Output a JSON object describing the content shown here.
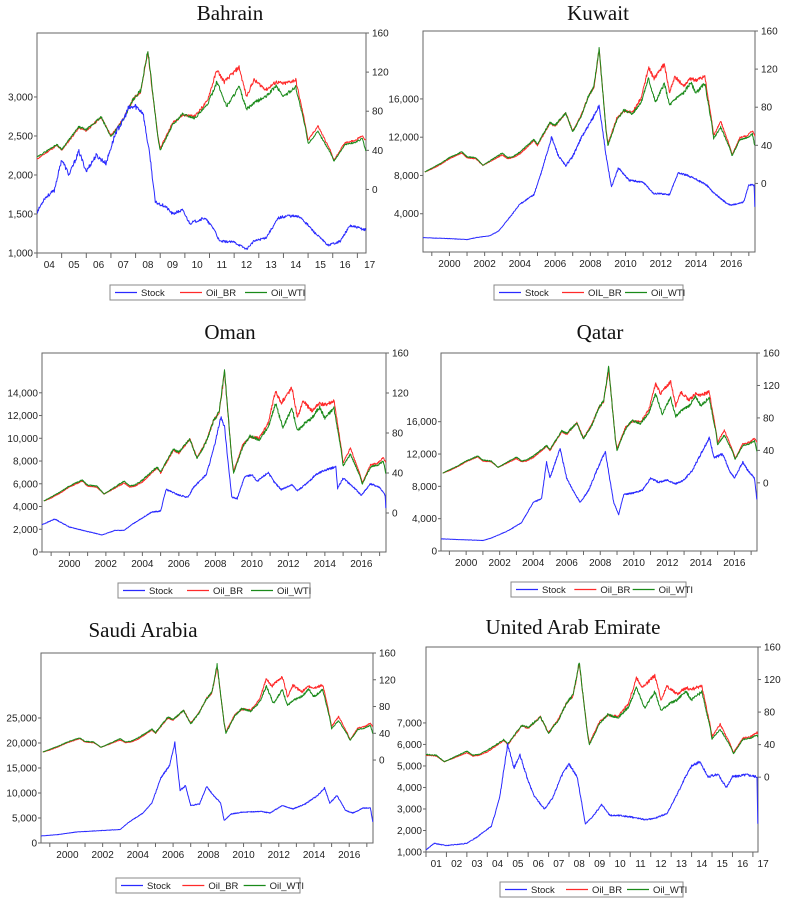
{
  "colors": {
    "Stock": "#2a2aff",
    "Oil_BR": "#ff2a2a",
    "Oil_WTI": "#1a8a1a",
    "frame": "#666666"
  },
  "oil_prices": {
    "Oil_BR": {
      "x": [
        1998.6,
        1999.0,
        1999.5,
        2000.0,
        2000.7,
        2001.0,
        2001.5,
        2001.9,
        2002.5,
        2003.0,
        2003.3,
        2003.6,
        2004.0,
        2004.8,
        2005.0,
        2005.7,
        2006.0,
        2006.6,
        2007.0,
        2007.5,
        2007.9,
        2008.2,
        2008.5,
        2008.9,
        2009.0,
        2009.5,
        2009.9,
        2010.4,
        2010.9,
        2011.3,
        2011.6,
        2012.2,
        2012.5,
        2012.8,
        2013.3,
        2013.7,
        2014.0,
        2014.5,
        2014.9,
        2015.0,
        2015.4,
        2015.9,
        2016.05,
        2016.5,
        2016.9,
        2017.2,
        2017.4
      ],
      "values": [
        12,
        15,
        20,
        26,
        32,
        27,
        26,
        19,
        25,
        30,
        26,
        27,
        31,
        45,
        40,
        63,
        60,
        74,
        55,
        72,
        92,
        100,
        140,
        55,
        42,
        68,
        76,
        75,
        90,
        122,
        110,
        125,
        95,
        112,
        102,
        110,
        108,
        112,
        65,
        50,
        65,
        40,
        30,
        48,
        50,
        55,
        48
      ]
    },
    "Oil_WTI": {
      "x": [
        1998.6,
        1999.0,
        1999.5,
        2000.0,
        2000.7,
        2001.0,
        2001.5,
        2001.9,
        2002.5,
        2003.0,
        2003.3,
        2003.6,
        2004.0,
        2004.8,
        2005.0,
        2005.7,
        2006.0,
        2006.6,
        2007.0,
        2007.5,
        2007.9,
        2008.2,
        2008.5,
        2008.9,
        2009.0,
        2009.5,
        2009.9,
        2010.4,
        2010.9,
        2011.3,
        2011.7,
        2012.2,
        2012.5,
        2012.9,
        2013.3,
        2013.7,
        2014.0,
        2014.5,
        2014.9,
        2015.0,
        2015.4,
        2015.9,
        2016.05,
        2016.5,
        2016.9,
        2017.2,
        2017.4
      ],
      "values": [
        12,
        16,
        21,
        27,
        33,
        28,
        27,
        19,
        26,
        32,
        27,
        28,
        33,
        46,
        41,
        64,
        61,
        74,
        54,
        71,
        92,
        101,
        142,
        54,
        40,
        66,
        77,
        73,
        86,
        110,
        85,
        105,
        82,
        90,
        95,
        106,
        95,
        105,
        62,
        47,
        59,
        38,
        29,
        46,
        48,
        52,
        34
      ]
    }
  },
  "chart_data": [
    {
      "type": "line",
      "title": "Bahrain",
      "xlim": [
        2004.0,
        2017.35
      ],
      "ylim": [
        1000,
        3820
      ],
      "y2lim": [
        -65,
        160
      ],
      "yticks": [
        1000,
        1500,
        2000,
        2500,
        3000
      ],
      "ytick_labels": [
        "1,000",
        "1,500",
        "2,000",
        "2,500",
        "3,000"
      ],
      "y2ticks": [
        0,
        40,
        80,
        120,
        160
      ],
      "y2tick_labels": [
        "0",
        "40",
        "80",
        "120",
        "160"
      ],
      "xticks": [
        2004,
        2005,
        2006,
        2007,
        2008,
        2009,
        2010,
        2011,
        2012,
        2013,
        2014,
        2015,
        2016,
        2017
      ],
      "xtick_labels": [
        "04",
        "05",
        "06",
        "07",
        "08",
        "09",
        "10",
        "11",
        "12",
        "13",
        "14",
        "15",
        "16",
        "17"
      ],
      "xlabel_mode": "yearly",
      "legend": [
        "Stock",
        "Oil_BR",
        "Oil_WTI"
      ],
      "stock": {
        "x": [
          2004.0,
          2004.3,
          2004.7,
          2005.0,
          2005.3,
          2005.7,
          2006.0,
          2006.4,
          2006.8,
          2007.2,
          2007.5,
          2007.7,
          2008.0,
          2008.3,
          2008.6,
          2008.8,
          2009.2,
          2009.5,
          2009.9,
          2010.2,
          2010.8,
          2011.2,
          2011.4,
          2012.0,
          2012.5,
          2012.8,
          2013.3,
          2013.8,
          2014.2,
          2014.7,
          2015.3,
          2015.8,
          2016.3,
          2016.7,
          2017.3
        ],
        "values": [
          1520,
          1700,
          1800,
          2200,
          2000,
          2300,
          2050,
          2250,
          2150,
          2550,
          2700,
          2850,
          2880,
          2800,
          2200,
          1650,
          1600,
          1500,
          1550,
          1380,
          1450,
          1300,
          1150,
          1140,
          1050,
          1150,
          1200,
          1450,
          1480,
          1460,
          1250,
          1100,
          1150,
          1350,
          1300
        ]
      }
    },
    {
      "type": "line",
      "title": "Kuwait",
      "xlim": [
        1998.5,
        2017.35
      ],
      "ylim": [
        0,
        23100
      ],
      "y2lim": [
        -72,
        160
      ],
      "yticks": [
        4000,
        8000,
        12000,
        16000
      ],
      "ytick_labels": [
        "4,000",
        "8,000",
        "12,000",
        "16,000"
      ],
      "y2ticks": [
        0,
        40,
        80,
        120,
        160
      ],
      "y2tick_labels": [
        "0",
        "40",
        "80",
        "120",
        "160"
      ],
      "xticks": [
        2000,
        2002,
        2004,
        2006,
        2008,
        2010,
        2012,
        2014,
        2016
      ],
      "xtick_labels": [
        "2000",
        "2002",
        "2004",
        "2006",
        "2008",
        "2010",
        "2012",
        "2014",
        "2016"
      ],
      "xlabel_mode": "biennial",
      "legend": [
        "Stock",
        "OIL_BR",
        "Oil_WTI"
      ],
      "stock": {
        "x": [
          1998.5,
          2000.0,
          2001.0,
          2001.5,
          2002.3,
          2002.8,
          2003.5,
          2004.0,
          2004.8,
          2005.2,
          2005.8,
          2006.2,
          2006.6,
          2007.0,
          2007.5,
          2008.0,
          2008.5,
          2008.9,
          2009.2,
          2009.6,
          2010.2,
          2011.0,
          2011.6,
          2012.0,
          2012.5,
          2013.0,
          2013.5,
          2014.0,
          2014.6,
          2015.0,
          2015.8,
          2016.0,
          2016.7,
          2017.0,
          2017.3,
          2017.35
        ],
        "values": [
          1500,
          1400,
          1300,
          1500,
          1700,
          2200,
          3800,
          5000,
          6000,
          8200,
          12000,
          10000,
          9000,
          10000,
          12000,
          13500,
          15300,
          10000,
          6800,
          8800,
          7500,
          7300,
          6100,
          6100,
          6000,
          8300,
          8000,
          7600,
          7000,
          6200,
          5000,
          4900,
          5200,
          7000,
          7000,
          4200
        ]
      }
    },
    {
      "type": "line",
      "title": "Oman",
      "xlim": [
        1998.5,
        2017.35
      ],
      "ylim": [
        0,
        17500
      ],
      "y2lim": [
        -39,
        160
      ],
      "yticks": [
        0,
        2000,
        4000,
        6000,
        8000,
        10000,
        12000,
        14000
      ],
      "ytick_labels": [
        "0",
        "2,000",
        "4,000",
        "6,000",
        "8,000",
        "10,000",
        "12,000",
        "14,000"
      ],
      "y2ticks": [
        0,
        40,
        80,
        120,
        160
      ],
      "y2tick_labels": [
        "0",
        "40",
        "80",
        "120",
        "160"
      ],
      "xticks": [
        2000,
        2002,
        2004,
        2006,
        2008,
        2010,
        2012,
        2014,
        2016
      ],
      "xtick_labels": [
        "2000",
        "2002",
        "2004",
        "2006",
        "2008",
        "2010",
        "2012",
        "2014",
        "2016"
      ],
      "xlabel_mode": "biennial",
      "legend": [
        "Stock",
        "Oil_BR",
        "Oil_WTI"
      ],
      "stock": {
        "x": [
          1998.5,
          1999.2,
          2000.0,
          2001.0,
          2001.8,
          2002.5,
          2003.0,
          2003.5,
          2004.0,
          2004.5,
          2005.0,
          2005.3,
          2006.0,
          2006.5,
          2006.8,
          2007.5,
          2007.9,
          2008.3,
          2008.5,
          2008.9,
          2009.2,
          2009.6,
          2010.0,
          2010.3,
          2010.9,
          2011.2,
          2011.6,
          2012.2,
          2012.5,
          2013.0,
          2013.5,
          2014.0,
          2014.6,
          2014.7,
          2015.0,
          2015.5,
          2016.0,
          2016.5,
          2017.0,
          2017.3,
          2017.35
        ],
        "values": [
          2400,
          2900,
          2200,
          1800,
          1500,
          1900,
          1900,
          2500,
          3000,
          3500,
          3600,
          5500,
          5000,
          4800,
          5700,
          6800,
          9000,
          11900,
          11000,
          4800,
          4700,
          6600,
          6800,
          6200,
          7000,
          6200,
          5500,
          5900,
          5400,
          6000,
          6800,
          7200,
          7500,
          5600,
          6500,
          5800,
          5000,
          6000,
          5700,
          5000,
          3600
        ]
      }
    },
    {
      "type": "line",
      "title": "Qatar",
      "xlim": [
        1998.5,
        2017.35
      ],
      "ylim": [
        0,
        24500
      ],
      "y2lim": [
        -84,
        160
      ],
      "yticks": [
        0,
        4000,
        8000,
        12000,
        16000
      ],
      "ytick_labels": [
        "0",
        "4,000",
        "8,000",
        "12,000",
        "16,000"
      ],
      "y2ticks": [
        0,
        40,
        80,
        120,
        160
      ],
      "y2tick_labels": [
        "0",
        "40",
        "80",
        "120",
        "160"
      ],
      "xticks": [
        2000,
        2002,
        2004,
        2006,
        2008,
        2010,
        2012,
        2014,
        2016
      ],
      "xtick_labels": [
        "2000",
        "2002",
        "2004",
        "2006",
        "2008",
        "2010",
        "2012",
        "2014",
        "2016"
      ],
      "xlabel_mode": "biennial",
      "legend": [
        "Stock",
        "Oil_BR",
        "Oil_WTI"
      ],
      "stock": {
        "x": [
          1998.5,
          2001.0,
          2001.5,
          2002.5,
          2003.3,
          2004.0,
          2004.5,
          2004.8,
          2005.0,
          2005.6,
          2006.0,
          2006.3,
          2006.8,
          2007.3,
          2007.8,
          2008.3,
          2008.8,
          2009.1,
          2009.4,
          2010.0,
          2010.5,
          2011.0,
          2011.5,
          2012.0,
          2012.5,
          2013.0,
          2013.5,
          2014.0,
          2014.5,
          2014.8,
          2015.3,
          2015.7,
          2016.0,
          2016.5,
          2016.8,
          2017.2,
          2017.35
        ],
        "values": [
          1500,
          1300,
          1600,
          2500,
          3500,
          6000,
          6500,
          11000,
          9000,
          12700,
          9000,
          7800,
          6000,
          7500,
          10000,
          12300,
          6000,
          4500,
          7000,
          7200,
          7500,
          9000,
          8500,
          8800,
          8300,
          8800,
          10000,
          12000,
          14000,
          11500,
          12000,
          10000,
          9000,
          11000,
          10000,
          9000,
          6200
        ]
      }
    },
    {
      "type": "line",
      "title": "Saudi Arabia",
      "xlim": [
        1998.5,
        2017.35
      ],
      "ylim": [
        0,
        38000
      ],
      "y2lim": [
        -124,
        160
      ],
      "yticks": [
        0,
        5000,
        10000,
        15000,
        20000,
        25000
      ],
      "ytick_labels": [
        "0",
        "5,000",
        "10,000",
        "15,000",
        "20,000",
        "25,000"
      ],
      "y2ticks": [
        0,
        40,
        80,
        120,
        160
      ],
      "y2tick_labels": [
        "0",
        "40",
        "80",
        "120",
        "160"
      ],
      "xticks": [
        2000,
        2002,
        2004,
        2006,
        2008,
        2010,
        2012,
        2014,
        2016
      ],
      "xtick_labels": [
        "2000",
        "2002",
        "2004",
        "2006",
        "2008",
        "2010",
        "2012",
        "2014",
        "2016"
      ],
      "xlabel_mode": "biennial",
      "legend": [
        "Stock",
        "Oil_BR",
        "Oil_WTI"
      ],
      "stock": {
        "x": [
          1998.5,
          1999.5,
          2000.5,
          2002.0,
          2003.0,
          2003.5,
          2004.3,
          2004.8,
          2005.3,
          2005.8,
          2006.1,
          2006.4,
          2006.7,
          2007.0,
          2007.5,
          2007.9,
          2008.3,
          2008.7,
          2008.9,
          2009.3,
          2010.0,
          2011.0,
          2011.5,
          2012.2,
          2012.8,
          2013.5,
          2014.2,
          2014.6,
          2014.9,
          2015.3,
          2015.8,
          2016.2,
          2016.8,
          2017.2,
          2017.35
        ],
        "values": [
          1400,
          1700,
          2200,
          2500,
          2700,
          4200,
          6000,
          8000,
          13000,
          15500,
          20000,
          10500,
          11500,
          7500,
          7800,
          11300,
          9500,
          8000,
          4500,
          5800,
          6200,
          6300,
          6000,
          7500,
          6800,
          7800,
          9500,
          11000,
          8000,
          9500,
          6500,
          6000,
          7000,
          7000,
          4000
        ]
      }
    },
    {
      "type": "line",
      "title": "United Arab Emirate",
      "xlim": [
        2001.0,
        2017.25
      ],
      "ylim": [
        1000,
        10530
      ],
      "y2lim": [
        -92,
        160
      ],
      "yticks": [
        1000,
        2000,
        3000,
        4000,
        5000,
        6000,
        7000
      ],
      "ytick_labels": [
        "1,000",
        "2,000",
        "3,000",
        "4,000",
        "5,000",
        "6,000",
        "7,000"
      ],
      "y2ticks": [
        0,
        40,
        80,
        120,
        160
      ],
      "y2tick_labels": [
        "0",
        "40",
        "80",
        "120",
        "160"
      ],
      "xticks": [
        2001,
        2002,
        2003,
        2004,
        2005,
        2006,
        2007,
        2008,
        2009,
        2010,
        2011,
        2012,
        2013,
        2014,
        2015,
        2016,
        2017
      ],
      "xtick_labels": [
        "01",
        "02",
        "03",
        "04",
        "05",
        "06",
        "07",
        "08",
        "09",
        "10",
        "11",
        "12",
        "13",
        "14",
        "15",
        "16",
        "17"
      ],
      "xlabel_mode": "yearly",
      "legend": [
        "Stock",
        "Oil_BR",
        "Oil_WTI"
      ],
      "stock": {
        "x": [
          2001.0,
          2001.4,
          2002.0,
          2003.0,
          2003.5,
          2004.2,
          2004.6,
          2005.0,
          2005.3,
          2005.6,
          2006.0,
          2006.3,
          2006.8,
          2007.2,
          2007.6,
          2008.0,
          2008.4,
          2008.8,
          2009.2,
          2009.6,
          2010.0,
          2010.5,
          2011.2,
          2011.8,
          2012.3,
          2012.8,
          2013.2,
          2013.7,
          2014.0,
          2014.4,
          2014.8,
          2015.3,
          2015.7,
          2016.0,
          2016.7,
          2017.2,
          2017.25
        ],
        "values": [
          1100,
          1400,
          1300,
          1400,
          1700,
          2200,
          3500,
          6000,
          4900,
          5500,
          4300,
          3600,
          3000,
          3500,
          4500,
          5100,
          4500,
          2300,
          2700,
          3200,
          2700,
          2700,
          2600,
          2500,
          2600,
          2800,
          3500,
          4500,
          5000,
          5200,
          4500,
          4600,
          4000,
          4500,
          4600,
          4500,
          1800
        ]
      }
    }
  ]
}
